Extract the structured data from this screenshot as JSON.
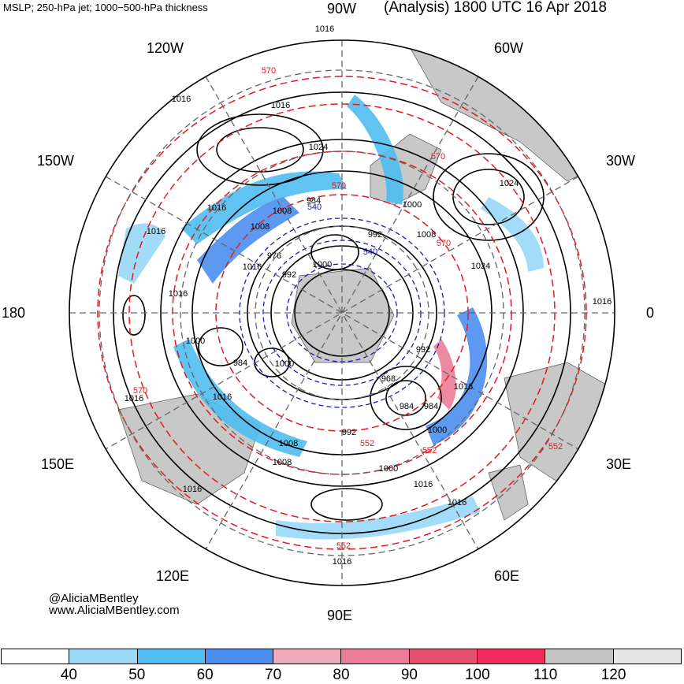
{
  "header": {
    "left": "MSLP; 250-hPa jet; 1000−500-hPa thickness",
    "right": "(Analysis) 1800 UTC 16 Apr 2018"
  },
  "credit": {
    "twitter": "@AliciaMBentley",
    "website": "www.AliciaMBentley.com"
  },
  "longitudes": {
    "w90": "90W",
    "w60": "60W",
    "w30": "30W",
    "e0": "0",
    "e30": "30E",
    "e60": "60E",
    "e90": "90E",
    "e120": "120E",
    "e150": "150E",
    "d180": "180",
    "w150": "150W",
    "w120": "120W"
  },
  "isobar_labels": [
    "1016",
    "1016",
    "1016",
    "1024",
    "1024",
    "1016",
    "1016",
    "1024",
    "1016",
    "1016",
    "1008",
    "1000",
    "1008",
    "984",
    "976",
    "992",
    "992",
    "1008",
    "1016",
    "1000",
    "984",
    "984",
    "1000",
    "992",
    "1000",
    "968",
    "984",
    "1000",
    "992",
    "1008",
    "1000",
    "1008",
    "1016",
    "1016",
    "1016",
    "1016",
    "1016",
    "1016",
    "1016"
  ],
  "thickness_labels": [
    "570",
    "570",
    "570",
    "570",
    "570",
    "552",
    "552",
    "552",
    "552",
    "540",
    "540"
  ],
  "colorbar": {
    "ticks": [
      "40",
      "50",
      "60",
      "70",
      "80",
      "90",
      "100",
      "110",
      "120"
    ],
    "colors": [
      "#ffffff",
      "#99d8f7",
      "#4fbdf0",
      "#4c8df0",
      "#f1a8bd",
      "#ec7d96",
      "#e5506f",
      "#f02a5a",
      "#c4c4c4",
      "#e6e6e6"
    ]
  },
  "colors": {
    "isobar": "#000000",
    "thickness": "#e41a1c",
    "low_thickness": "#1a1ab4",
    "land": "#c8c8c8",
    "grid": "#666666"
  }
}
